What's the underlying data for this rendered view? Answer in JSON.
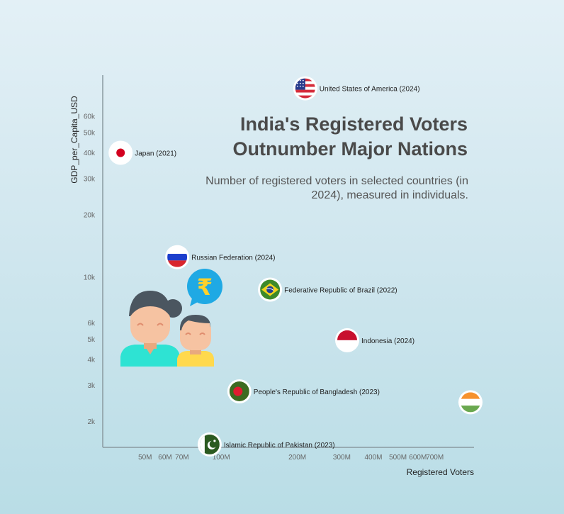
{
  "chart_data": {
    "type": "scatter",
    "title": "India's Registered Voters\nOutnumber Major Nations",
    "subtitle": "Number of registered voters in selected countries (in 2024), measured in individuals.",
    "xlabel": "Registered Voters",
    "ylabel": "GDP_per_Capita_USD",
    "x_scale": "log",
    "y_scale": "log",
    "xlim": [
      34000000,
      1000000000
    ],
    "ylim": [
      1500,
      95000
    ],
    "x_ticks": [
      {
        "value": 50000000,
        "label": "50M"
      },
      {
        "value": 60000000,
        "label": "60M"
      },
      {
        "value": 70000000,
        "label": "70M"
      },
      {
        "value": 100000000,
        "label": "100M"
      },
      {
        "value": 200000000,
        "label": "200M"
      },
      {
        "value": 300000000,
        "label": "300M"
      },
      {
        "value": 400000000,
        "label": "400M"
      },
      {
        "value": 500000000,
        "label": "500M"
      },
      {
        "value": 600000000,
        "label": "600M"
      },
      {
        "value": 700000000,
        "label": "700M"
      }
    ],
    "y_ticks": [
      {
        "value": 2000,
        "label": "2k"
      },
      {
        "value": 3000,
        "label": "3k"
      },
      {
        "value": 4000,
        "label": "4k"
      },
      {
        "value": 5000,
        "label": "5k"
      },
      {
        "value": 6000,
        "label": "6k"
      },
      {
        "value": 10000,
        "label": "10k"
      },
      {
        "value": 20000,
        "label": "20k"
      },
      {
        "value": 30000,
        "label": "30k"
      },
      {
        "value": 40000,
        "label": "40k"
      },
      {
        "value": 50000,
        "label": "50k"
      },
      {
        "value": 60000,
        "label": "60k"
      }
    ],
    "grid": false,
    "points": [
      {
        "label": "United States of America (2024)",
        "flag": "usa",
        "x": 215000000,
        "y": 82000
      },
      {
        "label": "Japan (2021)",
        "flag": "japan",
        "x": 40000000,
        "y": 40000
      },
      {
        "label": "Russian Federation (2024)",
        "flag": "russia",
        "x": 67000000,
        "y": 12500
      },
      {
        "label": "Federative Republic of Brazil (2022)",
        "flag": "brazil",
        "x": 156000000,
        "y": 8700
      },
      {
        "label": "Indonesia (2024)",
        "flag": "indonesia",
        "x": 315000000,
        "y": 4950
      },
      {
        "label": "People's Republic of Bangladesh (2023)",
        "flag": "bangladesh",
        "x": 118000000,
        "y": 2800
      },
      {
        "label": "Islamic Republic of Pakistan (2023)",
        "flag": "pakistan",
        "x": 90000000,
        "y": 1550
      },
      {
        "label": "",
        "flag": "india",
        "x": 968000000,
        "y": 2480
      }
    ]
  },
  "colors": {
    "axis": "#8a9aa0",
    "tick_text": "#666666",
    "label_text": "#222222",
    "title": "#4a4a4a",
    "marker_ring": "#ffffff"
  },
  "illustration": {
    "name": "people-with-rupee-bubble",
    "symbol": "₹"
  }
}
